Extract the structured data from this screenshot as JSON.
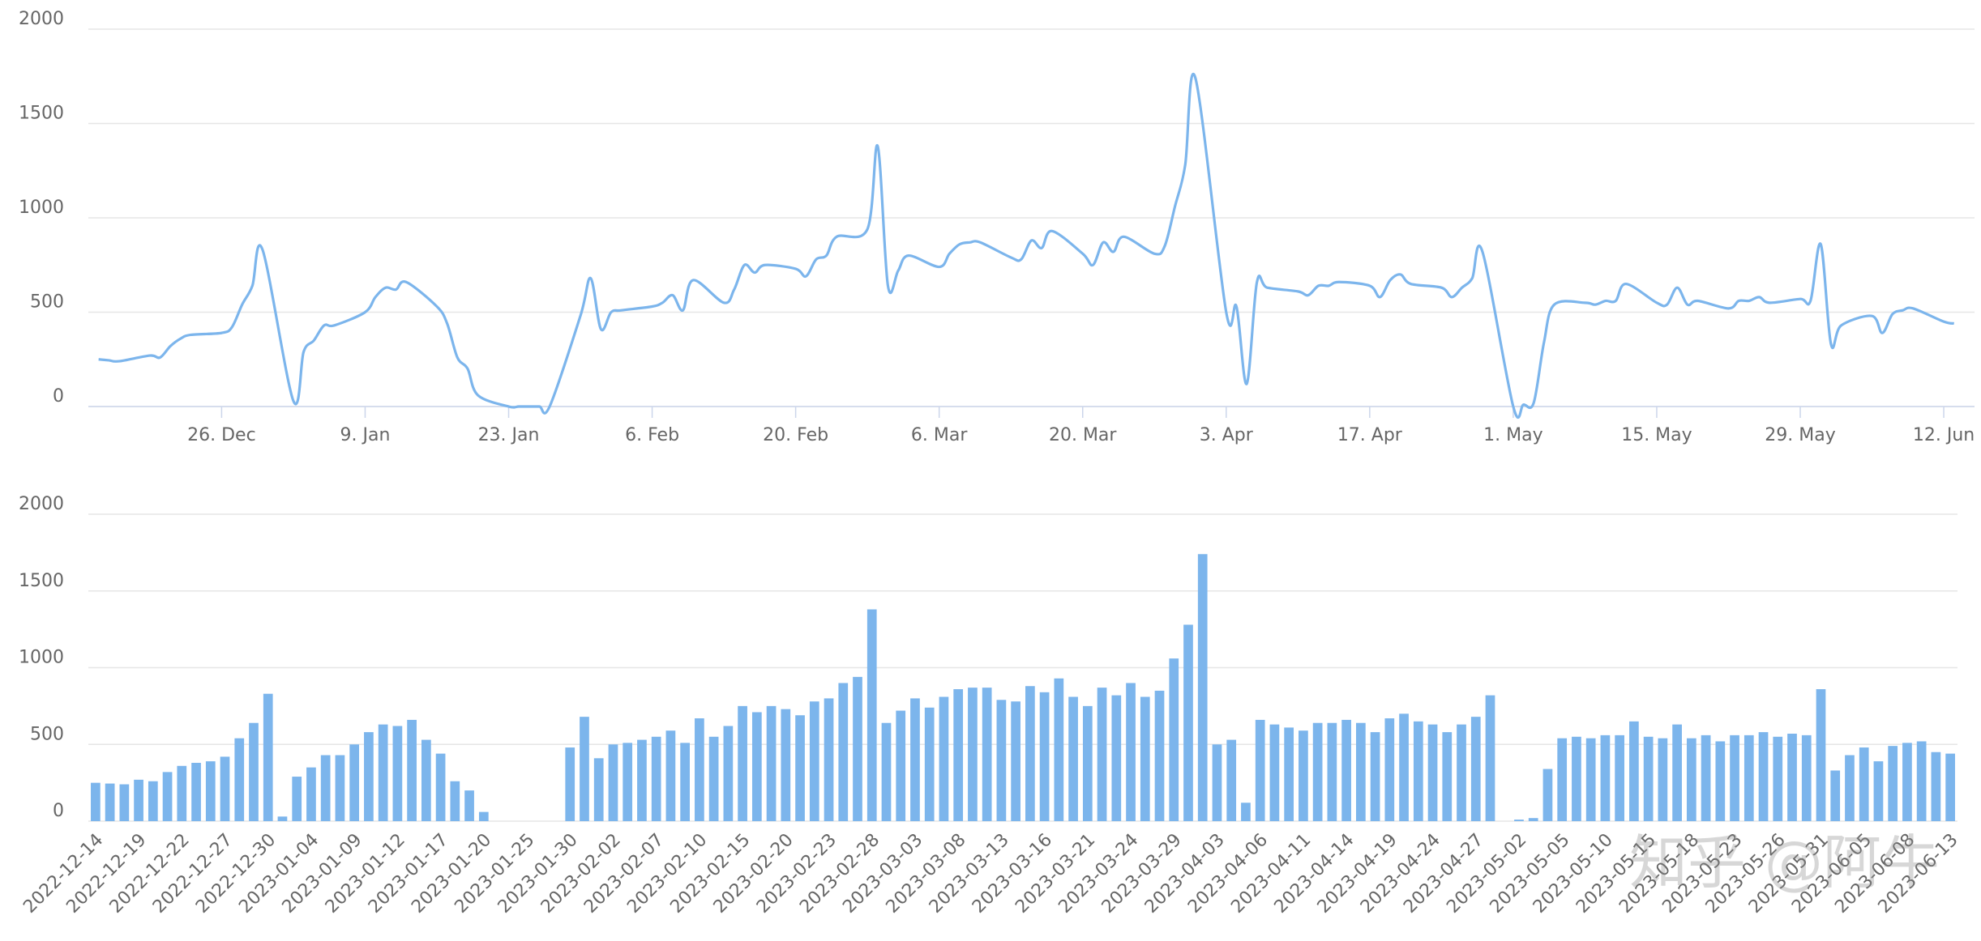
{
  "chart_data": [
    {
      "type": "line",
      "color": "#7cb5ec",
      "grid": true,
      "x": [
        "14. Dec",
        "15. Dec",
        "16. Dec",
        "19. Dec",
        "20. Dec",
        "21. Dec",
        "22. Dec",
        "23. Dec",
        "26. Dec",
        "27. Dec",
        "28. Dec",
        "29. Dec",
        "30. Dec",
        "2. Jan",
        "3. Jan",
        "4. Jan",
        "5. Jan",
        "6. Jan",
        "9. Jan",
        "10. Jan",
        "11. Jan",
        "12. Jan",
        "13. Jan",
        "16. Jan",
        "17. Jan",
        "18. Jan",
        "19. Jan",
        "20. Jan",
        "23. Jan",
        "24. Jan",
        "25. Jan",
        "26. Jan",
        "27. Jan",
        "30. Jan",
        "31. Jan",
        "1. Feb",
        "2. Feb",
        "3. Feb",
        "6. Feb",
        "7. Feb",
        "8. Feb",
        "9. Feb",
        "10. Feb",
        "13. Feb",
        "14. Feb",
        "15. Feb",
        "16. Feb",
        "17. Feb",
        "20. Feb",
        "21. Feb",
        "22. Feb",
        "23. Feb",
        "24. Feb",
        "27. Feb",
        "28. Feb",
        "1. Mar",
        "2. Mar",
        "3. Mar",
        "6. Mar",
        "7. Mar",
        "8. Mar",
        "9. Mar",
        "10. Mar",
        "13. Mar",
        "14. Mar",
        "15. Mar",
        "16. Mar",
        "17. Mar",
        "20. Mar",
        "21. Mar",
        "22. Mar",
        "23. Mar",
        "24. Mar",
        "27. Mar",
        "28. Mar",
        "29. Mar",
        "30. Mar",
        "31. Mar",
        "3. Apr",
        "4. Apr",
        "5. Apr",
        "6. Apr",
        "7. Apr",
        "10. Apr",
        "11. Apr",
        "12. Apr",
        "13. Apr",
        "14. Apr",
        "17. Apr",
        "18. Apr",
        "19. Apr",
        "20. Apr",
        "21. Apr",
        "24. Apr",
        "25. Apr",
        "26. Apr",
        "27. Apr",
        "28. Apr",
        "1. May",
        "2. May",
        "3. May",
        "4. May",
        "5. May",
        "8. May",
        "9. May",
        "10. May",
        "11. May",
        "12. May",
        "15. May",
        "16. May",
        "17. May",
        "18. May",
        "19. May",
        "22. May",
        "23. May",
        "24. May",
        "25. May",
        "26. May",
        "29. May",
        "30. May",
        "31. May",
        "1. Jun",
        "2. Jun",
        "5. Jun",
        "6. Jun",
        "7. Jun",
        "8. Jun",
        "9. Jun",
        "12. Jun",
        "13. Jun"
      ],
      "values": [
        250,
        245,
        240,
        270,
        260,
        320,
        360,
        380,
        390,
        420,
        540,
        640,
        830,
        30,
        290,
        350,
        430,
        430,
        500,
        580,
        630,
        620,
        660,
        530,
        440,
        260,
        200,
        60,
        0,
        0,
        0,
        0,
        0,
        480,
        680,
        410,
        500,
        510,
        530,
        550,
        590,
        510,
        670,
        550,
        620,
        750,
        710,
        750,
        730,
        690,
        780,
        800,
        900,
        940,
        1380,
        640,
        720,
        800,
        740,
        810,
        860,
        870,
        870,
        790,
        780,
        880,
        840,
        930,
        810,
        750,
        870,
        820,
        900,
        810,
        850,
        1060,
        1280,
        1740,
        500,
        530,
        120,
        660,
        630,
        610,
        590,
        640,
        640,
        660,
        640,
        580,
        670,
        700,
        650,
        630,
        580,
        630,
        680,
        820,
        0,
        10,
        20,
        340,
        540,
        550,
        540,
        560,
        560,
        650,
        550,
        540,
        630,
        540,
        560,
        520,
        560,
        560,
        580,
        550,
        570,
        560,
        860,
        330,
        430,
        480,
        390,
        490,
        510,
        520,
        450,
        440
      ],
      "xlim": [
        "13. Dec",
        "15. Jun"
      ],
      "xticks": [
        "26. Dec",
        "9. Jan",
        "23. Jan",
        "6. Feb",
        "20. Feb",
        "6. Mar",
        "20. Mar",
        "3. Apr",
        "17. Apr",
        "1. May",
        "15. May",
        "29. May",
        "12. Jun"
      ],
      "ylim": [
        0,
        2000
      ],
      "yticks": [
        0,
        500,
        1000,
        1500,
        2000
      ]
    },
    {
      "type": "bar",
      "color": "#7cb5ec",
      "grid": true,
      "categories": [
        "2022-12-14",
        null,
        null,
        "2022-12-19",
        null,
        null,
        "2022-12-22",
        null,
        null,
        "2022-12-27",
        null,
        null,
        "2022-12-30",
        null,
        null,
        "2023-01-04",
        null,
        null,
        "2023-01-09",
        null,
        null,
        "2023-01-12",
        null,
        null,
        "2023-01-17",
        null,
        null,
        "2023-01-20",
        null,
        null,
        "2023-01-25",
        null,
        null,
        "2023-01-30",
        null,
        null,
        "2023-02-02",
        null,
        null,
        "2023-02-07",
        null,
        null,
        "2023-02-10",
        null,
        null,
        "2023-02-15",
        null,
        null,
        "2023-02-20",
        null,
        null,
        "2023-02-23",
        null,
        null,
        "2023-02-28",
        null,
        null,
        "2023-03-03",
        null,
        null,
        "2023-03-08",
        null,
        null,
        "2023-03-13",
        null,
        null,
        "2023-03-16",
        null,
        null,
        "2023-03-21",
        null,
        null,
        "2023-03-24",
        null,
        null,
        "2023-03-29",
        null,
        null,
        "2023-04-03",
        null,
        null,
        "2023-04-06",
        null,
        null,
        "2023-04-11",
        null,
        null,
        "2023-04-14",
        null,
        null,
        "2023-04-19",
        null,
        null,
        "2023-04-24",
        null,
        null,
        "2023-04-27",
        null,
        null,
        "2023-05-02",
        null,
        null,
        "2023-05-05",
        null,
        null,
        "2023-05-10",
        null,
        null,
        "2023-05-15",
        null,
        null,
        "2023-05-18",
        null,
        null,
        "2023-05-23",
        null,
        null,
        "2023-05-26",
        null,
        null,
        "2023-05-31",
        null,
        null,
        "2023-06-05",
        null,
        null,
        "2023-06-08",
        null,
        null,
        "2023-06-13"
      ],
      "values": [
        250,
        245,
        240,
        270,
        260,
        320,
        360,
        380,
        390,
        420,
        540,
        640,
        830,
        30,
        290,
        350,
        430,
        430,
        500,
        580,
        630,
        620,
        660,
        530,
        440,
        260,
        200,
        60,
        0,
        0,
        0,
        0,
        0,
        480,
        680,
        410,
        500,
        510,
        530,
        550,
        590,
        510,
        670,
        550,
        620,
        750,
        710,
        750,
        730,
        690,
        780,
        800,
        900,
        940,
        1380,
        640,
        720,
        800,
        740,
        810,
        860,
        870,
        870,
        790,
        780,
        880,
        840,
        930,
        810,
        750,
        870,
        820,
        900,
        810,
        850,
        1060,
        1280,
        1740,
        500,
        530,
        120,
        660,
        630,
        610,
        590,
        640,
        640,
        660,
        640,
        580,
        670,
        700,
        650,
        630,
        580,
        630,
        680,
        820,
        0,
        10,
        20,
        340,
        540,
        550,
        540,
        560,
        560,
        650,
        550,
        540,
        630,
        540,
        560,
        520,
        560,
        560,
        580,
        550,
        570,
        560,
        860,
        330,
        430,
        480,
        390,
        490,
        510,
        520,
        450,
        440
      ],
      "ylim": [
        0,
        2000
      ],
      "yticks": [
        0,
        500,
        1000,
        1500,
        2000
      ]
    }
  ],
  "watermark": "知乎 @阿牛"
}
